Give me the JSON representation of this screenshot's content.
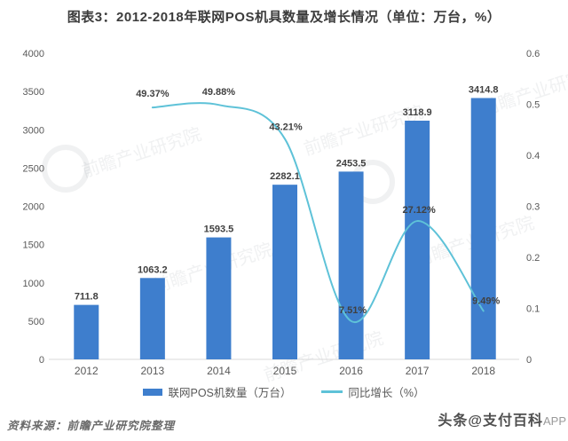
{
  "title": "图表3：2012-2018年联网POS机具数量及增长情况（单位：万台，%）",
  "chart_data": {
    "type": "bar+line",
    "categories": [
      "2012",
      "2013",
      "2014",
      "2015",
      "2016",
      "2017",
      "2018"
    ],
    "series": [
      {
        "name": "联网POS机数量（万台）",
        "type": "bar",
        "axis": "left",
        "color": "#3e7ecd",
        "values": [
          711.8,
          1063.2,
          1593.5,
          2282.1,
          2453.5,
          3118.9,
          3414.8
        ],
        "labels": [
          "711.8",
          "1063.2",
          "1593.5",
          "2282.1",
          "2453.5",
          "3118.9",
          "3414.8"
        ]
      },
      {
        "name": "同比增长（%）",
        "type": "line",
        "axis": "right",
        "color": "#5ec2d8",
        "values": [
          null,
          0.4937,
          0.4988,
          0.4321,
          0.0751,
          0.2712,
          0.0949
        ],
        "labels": [
          "",
          "49.37%",
          "49.88%",
          "43.21%",
          "7.51%",
          "27.12%",
          "9.49%"
        ]
      }
    ],
    "left_axis": {
      "min": 0,
      "max": 4000,
      "step": 500,
      "ticks": [
        "0",
        "500",
        "1000",
        "1500",
        "2000",
        "2500",
        "3000",
        "3500",
        "4000"
      ]
    },
    "right_axis": {
      "min": 0,
      "max": 0.6,
      "step": 0.1,
      "ticks": [
        "0",
        "0.1",
        "0.2",
        "0.3",
        "0.4",
        "0.5",
        "0.6"
      ]
    },
    "grid": false,
    "legend_position": "bottom"
  },
  "legend": [
    {
      "label": "联网POS机数量（万台）",
      "swatch": "bar"
    },
    {
      "label": "同比增长（%）",
      "swatch": "line"
    }
  ],
  "footer": {
    "source": "资料来源：前瞻产业研究院整理",
    "watermark_right": "头条@支付百科",
    "watermark_right_suffix": "APP"
  },
  "watermark": {
    "text": "前瞻产业研究院"
  },
  "colors": {
    "bar": "#3e7ecd",
    "line": "#5ec2d8",
    "title_text": "#3c3c3c",
    "axis_text": "#595959",
    "label_text": "#404040",
    "axis_line": "#d9d9d9",
    "watermark": "rgba(130,140,150,0.12)"
  }
}
